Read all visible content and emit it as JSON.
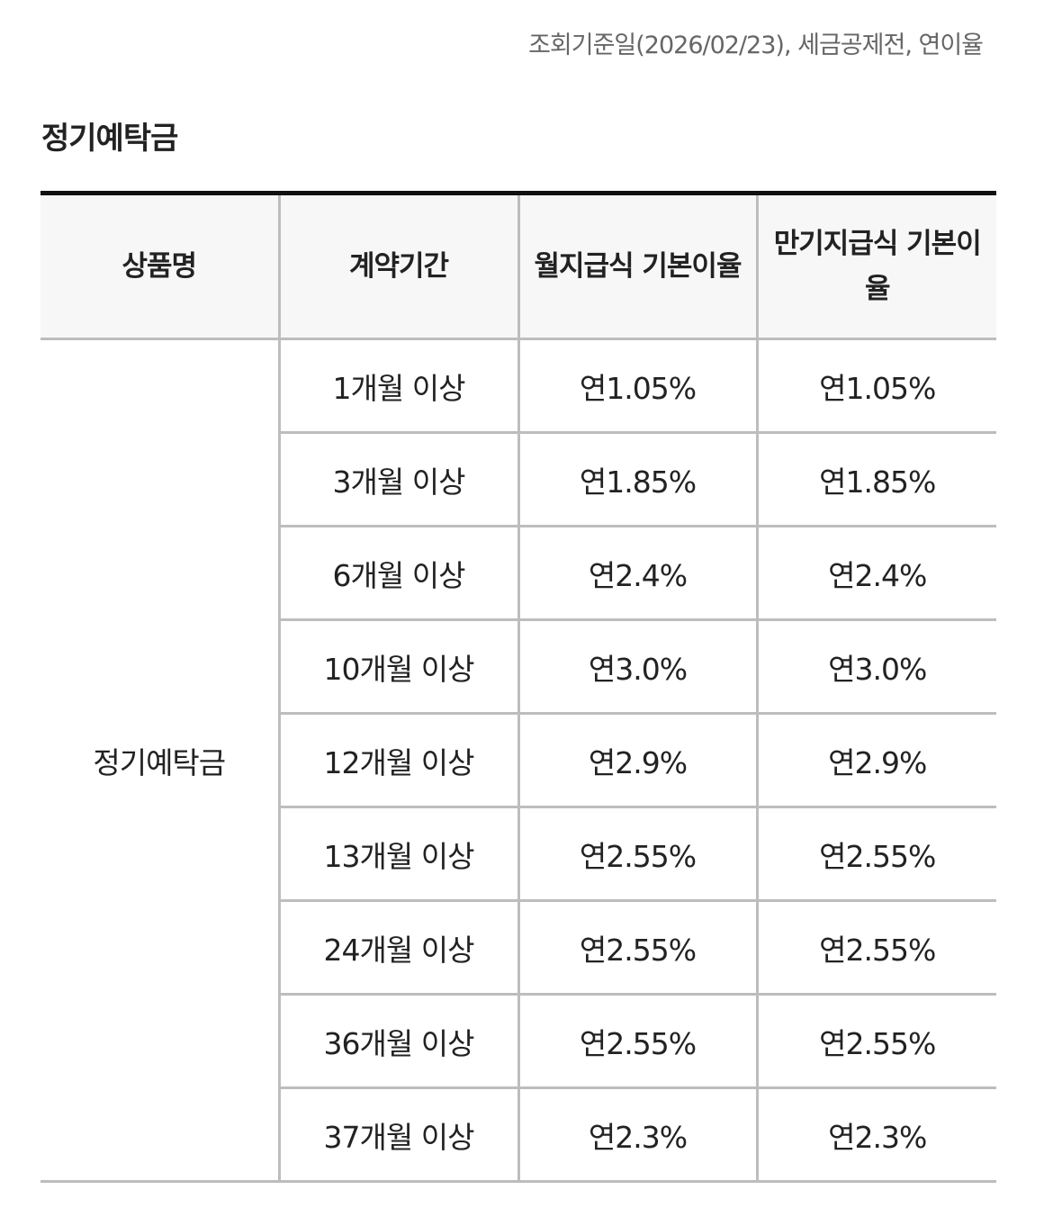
{
  "notice": "조회기준일(2026/02/23), 세금공제전, 연이율",
  "section_title": "정기예탁금",
  "table": {
    "headers": [
      "상품명",
      "계약기간",
      "월지급식 기본이율",
      "만기지급식 기본이율"
    ],
    "product_name": "정기예탁금",
    "rows": [
      {
        "term": "1개월 이상",
        "monthly": "연1.05%",
        "maturity": "연1.05%"
      },
      {
        "term": "3개월 이상",
        "monthly": "연1.85%",
        "maturity": "연1.85%"
      },
      {
        "term": "6개월 이상",
        "monthly": "연2.4%",
        "maturity": "연2.4%"
      },
      {
        "term": "10개월 이상",
        "monthly": "연3.0%",
        "maturity": "연3.0%"
      },
      {
        "term": "12개월 이상",
        "monthly": "연2.9%",
        "maturity": "연2.9%"
      },
      {
        "term": "13개월 이상",
        "monthly": "연2.55%",
        "maturity": "연2.55%"
      },
      {
        "term": "24개월 이상",
        "monthly": "연2.55%",
        "maturity": "연2.55%"
      },
      {
        "term": "36개월 이상",
        "monthly": "연2.55%",
        "maturity": "연2.55%"
      },
      {
        "term": "37개월 이상",
        "monthly": "연2.3%",
        "maturity": "연2.3%"
      }
    ]
  }
}
